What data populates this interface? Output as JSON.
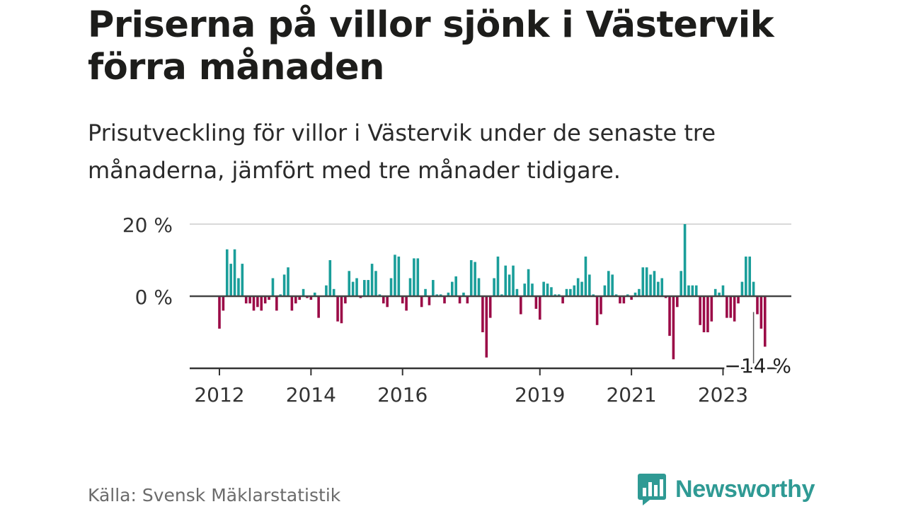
{
  "title": "Priserna på villor sjönk i Västervik förra månaden",
  "subtitle": "Prisutveckling för villor i Västervik under de senaste tre månaderna, jämfört med tre månader tidigare.",
  "source": "Källa: Svensk Mäklarstatistik",
  "brand": "Newsworthy",
  "colors": {
    "positive": "#1a9e9a",
    "negative": "#9b0b47",
    "brand": "#2f9a94"
  },
  "chart_data": {
    "type": "bar",
    "y_unit": "%",
    "ylim": [
      -20,
      20
    ],
    "y_ticks": [
      {
        "value": 20,
        "label": "20 %"
      },
      {
        "value": 0,
        "label": "0 %"
      }
    ],
    "x_ticks": [
      {
        "index": 0,
        "label": "2012"
      },
      {
        "index": 24,
        "label": "2014"
      },
      {
        "index": 48,
        "label": "2016"
      },
      {
        "index": 84,
        "label": "2019"
      },
      {
        "index": 108,
        "label": "2021"
      },
      {
        "index": 132,
        "label": "2023"
      }
    ],
    "annotation": {
      "index": 140,
      "label": "−14 %"
    },
    "values": [
      -9,
      -4,
      13,
      9,
      13,
      5,
      9,
      -2,
      -2,
      -4,
      -3,
      -4,
      -2,
      -1,
      5,
      -4,
      0.5,
      6,
      8,
      -4,
      -2,
      -1,
      2,
      -0.5,
      -1,
      1,
      -6,
      0,
      3,
      10,
      2,
      -7,
      -7.5,
      -2,
      7,
      4,
      5,
      -0.5,
      4.5,
      4.5,
      9,
      7,
      0.5,
      -2,
      -3,
      5,
      11.5,
      11,
      -2,
      -4,
      5,
      10.5,
      10.5,
      -3,
      2,
      -2.5,
      4.5,
      0.5,
      0.5,
      -2,
      1,
      4,
      5.5,
      -2,
      1,
      -2,
      10,
      9.5,
      5,
      -10,
      -17,
      -6,
      5,
      11,
      0.5,
      8.5,
      6,
      8.5,
      2,
      -5,
      3.5,
      7.5,
      3.5,
      -3.5,
      -6.5,
      4,
      3.5,
      2.5,
      0.5,
      0.5,
      -2,
      2,
      2,
      3,
      5,
      4,
      11,
      6,
      0.5,
      -8,
      -5,
      3,
      7,
      6,
      0.5,
      -2,
      -2,
      0.5,
      -1,
      1,
      2,
      8,
      8,
      6,
      7,
      4,
      5,
      -0.5,
      -11,
      -17.5,
      -3,
      7,
      20,
      3,
      3,
      3,
      -8,
      -10,
      -10,
      -7,
      2,
      1,
      3,
      -6,
      -6,
      -7,
      -2,
      4,
      11,
      11,
      4,
      -5,
      -9,
      -14
    ]
  }
}
